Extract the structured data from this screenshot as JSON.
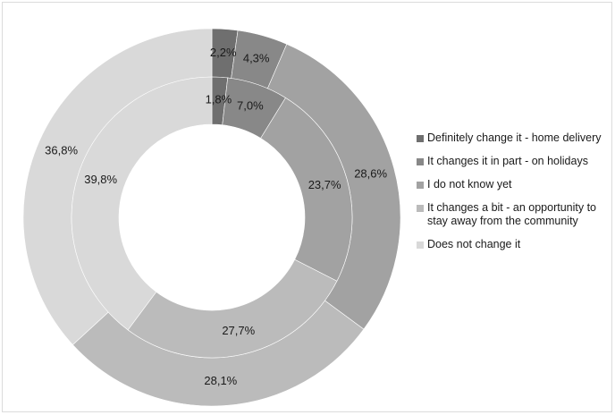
{
  "chart_data": {
    "type": "donut",
    "categories": [
      "Definitely change it - home delivery",
      "It changes it in part - on holidays",
      "I do not know yet",
      "It changes a bit - an opportunity to stay away from the community",
      "Does not change it"
    ],
    "series": [
      {
        "ring": "outer",
        "values": [
          2.2,
          4.3,
          28.6,
          28.1,
          36.8
        ],
        "labels": [
          "2,2%",
          "4,3%",
          "28,6%",
          "28,1%",
          "36,8%"
        ]
      },
      {
        "ring": "inner",
        "values": [
          1.8,
          7.0,
          23.7,
          27.7,
          39.8
        ],
        "labels": [
          "1,8%",
          "7,0%",
          "23,7%",
          "27,7%",
          "39,8%"
        ]
      }
    ],
    "colors": [
      "#6f6f6f",
      "#888888",
      "#a2a2a2",
      "#bbbbbb",
      "#d9d9d9"
    ],
    "legend_position": "right"
  },
  "legend": {
    "items": [
      {
        "label": "Definitely change it - home delivery",
        "color": "#6f6f6f"
      },
      {
        "label": "It changes it in part - on holidays",
        "color": "#888888"
      },
      {
        "label": "I do not know yet",
        "color": "#a2a2a2"
      },
      {
        "label": "It changes a bit - an opportunity to stay away from the community",
        "color": "#bbbbbb"
      },
      {
        "label": "Does not change it",
        "color": "#d9d9d9"
      }
    ]
  }
}
